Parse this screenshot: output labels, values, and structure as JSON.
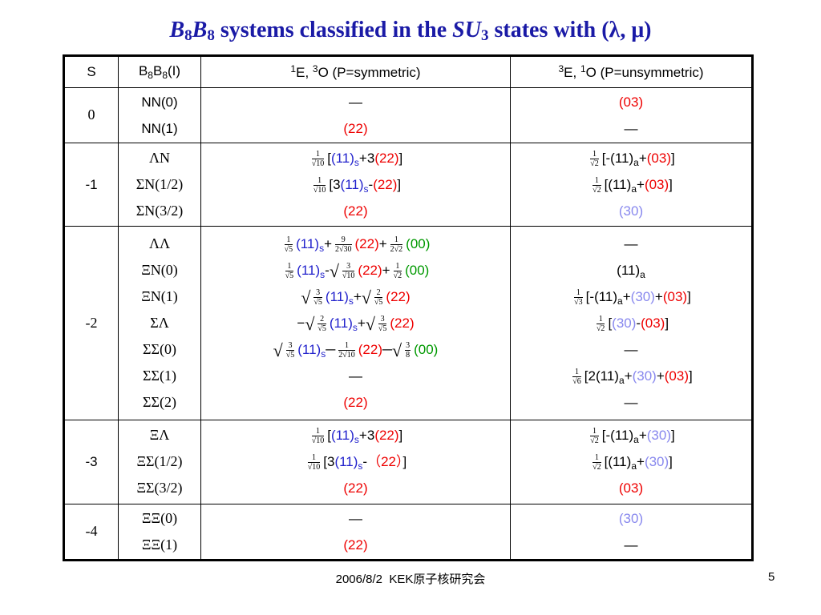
{
  "title": {
    "b1": "B",
    "s1": "8",
    "b2": "B",
    "s2": "8",
    "mid": " systems classified in the ",
    "su": "SU",
    "s3": "3",
    "end": " states with (λ, μ)"
  },
  "header": {
    "S": "S",
    "bb": {
      "b1": "B",
      "s1": "8",
      "b2": "B",
      "s2": "8",
      "i": "(I)"
    },
    "sym": {
      "sup1": "1",
      "e": "E,  ",
      "sup2": "3",
      "o": "O  (P=symmetric)"
    },
    "uns": {
      "sup1": "3",
      "e": "E, ",
      "sup2": "1",
      "o": "O (P=unsymmetric)"
    }
  },
  "rows": [
    {
      "s": "0",
      "bb": [
        "NN(0)",
        "NN(1)"
      ]
    },
    {
      "s": "-1",
      "bb": [
        "ΛN",
        "ΣN(1/2)",
        "ΣN(3/2)"
      ]
    },
    {
      "s": "-2",
      "bb": [
        "ΛΛ",
        "ΞN(0)",
        "ΞN(1)",
        "ΣΛ",
        "ΣΣ(0)",
        "ΣΣ(1)",
        "ΣΣ(2)"
      ]
    },
    {
      "s": "-3",
      "bb": [
        "ΞΛ",
        "ΞΣ(1/2)",
        "ΞΣ(3/2)"
      ]
    },
    {
      "s": "-4",
      "bb": [
        "ΞΞ(0)",
        "ΞΞ(1)"
      ]
    }
  ],
  "t": {
    "dash": "—",
    "p22": "(22)",
    "p03": "(03)",
    "p11": "(11)",
    "p30": "(30)",
    "p00": "(00)",
    "sub_s": "s",
    "sub_a": "a",
    "one": "1",
    "nine": "9",
    "two": "2",
    "three": "3",
    "d10": "√10",
    "d2": "√2",
    "d5": "√5",
    "d230": "2√30",
    "d22": "2√2",
    "d210": "2√10",
    "d3": "√3",
    "d6": "√6",
    "d8": "8",
    "lb": "[",
    "rb": "]",
    "lb3": "[3",
    "lb2": "[2",
    "lbm": "[-",
    "plus": "+",
    "minus": "-",
    "plus3": "+3",
    "longminus": "─",
    "neg": "−",
    "sqrt": "√",
    "wide22": "（22）"
  },
  "footer": {
    "date": "2006/8/2",
    "org": "KEK原子核研究会",
    "page": "5"
  }
}
